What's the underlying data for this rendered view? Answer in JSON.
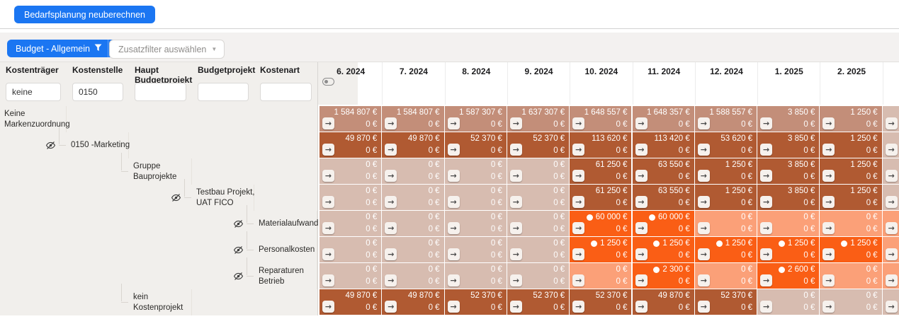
{
  "topbar": {
    "recalculate_label": "Bedarfsplanung neuberechnen"
  },
  "filterbar": {
    "primary_label": "Budget - Allgemein",
    "secondary_label": "Zusatzfilter auswählen"
  },
  "icons": {
    "caret_down": "▼",
    "arrow_right": "→",
    "filter_funnel": "funnel",
    "hidden_row": "eye-slash",
    "planned_value": "white-dot"
  },
  "filter_columns": [
    {
      "label": "Kostenträger",
      "value": "keine"
    },
    {
      "label": "Kostenstelle",
      "value": "0150"
    },
    {
      "label": "Haupt Budgetprojekt",
      "value": ""
    },
    {
      "label": "Budgetprojekt",
      "value": ""
    },
    {
      "label": "Kostenart",
      "value": ""
    }
  ],
  "months": [
    "6. 2024",
    "7. 2024",
    "8. 2024",
    "9. 2024",
    "10. 2024",
    "11. 2024",
    "12. 2024",
    "1. 2025",
    "2. 2025"
  ],
  "colors": {
    "accent_blue": "#1b76f2",
    "row_aggregate": "#c38e79",
    "row_dark": "#b05a32",
    "cell_pale": "#d7bcb0",
    "cell_orange": "#fa5e15",
    "cell_light_salmon": "#fba078",
    "pane_gray": "#f1efec"
  },
  "rows": [
    {
      "label": "Keine Markenzuordnung",
      "level": 0,
      "eye": false,
      "sub_value": "0 €",
      "partial_style": "pale",
      "cells": [
        {
          "v": "1 584 807 €",
          "s": "agg"
        },
        {
          "v": "1 584 807 €",
          "s": "agg"
        },
        {
          "v": "1 587 307 €",
          "s": "agg"
        },
        {
          "v": "1 637 307 €",
          "s": "agg"
        },
        {
          "v": "1 648 557 €",
          "s": "agg"
        },
        {
          "v": "1 648 357 €",
          "s": "agg"
        },
        {
          "v": "1 588 557 €",
          "s": "agg"
        },
        {
          "v": "3 850 €",
          "s": "agg"
        },
        {
          "v": "1 250 €",
          "s": "agg"
        }
      ]
    },
    {
      "label": "0150 -Marketing",
      "level": 1,
      "eye": true,
      "sub_value": "0 €",
      "partial_style": "pale",
      "cells": [
        {
          "v": "49 870 €",
          "s": "dark"
        },
        {
          "v": "49 870 €",
          "s": "dark"
        },
        {
          "v": "52 370 €",
          "s": "dark"
        },
        {
          "v": "52 370 €",
          "s": "dark"
        },
        {
          "v": "113 620 €",
          "s": "dark"
        },
        {
          "v": "113 420 €",
          "s": "dark"
        },
        {
          "v": "53 620 €",
          "s": "dark"
        },
        {
          "v": "3 850 €",
          "s": "dark"
        },
        {
          "v": "1 250 €",
          "s": "dark"
        }
      ]
    },
    {
      "label": "Gruppe Bauprojekte",
      "level": 2,
      "eye": false,
      "sub_value": "0 €",
      "partial_style": "pale",
      "cells": [
        {
          "v": "0 €",
          "s": "pale"
        },
        {
          "v": "0 €",
          "s": "pale"
        },
        {
          "v": "0 €",
          "s": "pale"
        },
        {
          "v": "0 €",
          "s": "pale"
        },
        {
          "v": "61 250 €",
          "s": "dark"
        },
        {
          "v": "63 550 €",
          "s": "dark"
        },
        {
          "v": "1 250 €",
          "s": "dark"
        },
        {
          "v": "3 850 €",
          "s": "dark"
        },
        {
          "v": "1 250 €",
          "s": "dark"
        }
      ]
    },
    {
      "label": "Testbau Projekt, UAT FICO",
      "level": 3,
      "eye": true,
      "sub_value": "0 €",
      "partial_style": "pale",
      "cells": [
        {
          "v": "0 €",
          "s": "pale"
        },
        {
          "v": "0 €",
          "s": "pale"
        },
        {
          "v": "0 €",
          "s": "pale"
        },
        {
          "v": "0 €",
          "s": "pale"
        },
        {
          "v": "61 250 €",
          "s": "dark"
        },
        {
          "v": "63 550 €",
          "s": "dark"
        },
        {
          "v": "1 250 €",
          "s": "dark"
        },
        {
          "v": "3 850 €",
          "s": "dark"
        },
        {
          "v": "1 250 €",
          "s": "dark"
        }
      ]
    },
    {
      "label": "Materialaufwand",
      "level": 4,
      "eye": true,
      "sub_value": "0 €",
      "partial_style": "ls",
      "cells": [
        {
          "v": "0 €",
          "s": "pale"
        },
        {
          "v": "0 €",
          "s": "pale"
        },
        {
          "v": "0 €",
          "s": "pale"
        },
        {
          "v": "0 €",
          "s": "pale"
        },
        {
          "v": "60 000 €",
          "s": "orange",
          "d": true
        },
        {
          "v": "60 000 €",
          "s": "orange",
          "d": true
        },
        {
          "v": "0 €",
          "s": "ls"
        },
        {
          "v": "0 €",
          "s": "ls"
        },
        {
          "v": "0 €",
          "s": "ls"
        }
      ]
    },
    {
      "label": "Personalkosten",
      "level": 4,
      "eye": true,
      "sub_value": "0 €",
      "partial_style": "ls",
      "cells": [
        {
          "v": "0 €",
          "s": "pale"
        },
        {
          "v": "0 €",
          "s": "pale"
        },
        {
          "v": "0 €",
          "s": "pale"
        },
        {
          "v": "0 €",
          "s": "pale"
        },
        {
          "v": "1 250 €",
          "s": "orange",
          "d": true
        },
        {
          "v": "1 250 €",
          "s": "orange",
          "d": true
        },
        {
          "v": "1 250 €",
          "s": "orange",
          "d": true
        },
        {
          "v": "1 250 €",
          "s": "orange",
          "d": true
        },
        {
          "v": "1 250 €",
          "s": "orange",
          "d": true
        }
      ]
    },
    {
      "label": "Reparaturen Betrieb",
      "level": 4,
      "eye": true,
      "sub_value": "0 €",
      "partial_style": "ls",
      "cells": [
        {
          "v": "0 €",
          "s": "pale"
        },
        {
          "v": "0 €",
          "s": "pale"
        },
        {
          "v": "0 €",
          "s": "pale"
        },
        {
          "v": "0 €",
          "s": "pale"
        },
        {
          "v": "0 €",
          "s": "ls"
        },
        {
          "v": "2 300 €",
          "s": "orange",
          "d": true
        },
        {
          "v": "0 €",
          "s": "ls"
        },
        {
          "v": "2 600 €",
          "s": "orange",
          "d": true
        },
        {
          "v": "0 €",
          "s": "ls"
        }
      ]
    },
    {
      "label": "kein Kostenprojekt",
      "level": 2,
      "eye": false,
      "sub_value": "0 €",
      "partial_style": "pale",
      "cells": [
        {
          "v": "49 870 €",
          "s": "dark"
        },
        {
          "v": "49 870 €",
          "s": "dark"
        },
        {
          "v": "52 370 €",
          "s": "dark"
        },
        {
          "v": "52 370 €",
          "s": "dark"
        },
        {
          "v": "52 370 €",
          "s": "dark"
        },
        {
          "v": "49 870 €",
          "s": "dark"
        },
        {
          "v": "52 370 €",
          "s": "dark"
        },
        {
          "v": "0 €",
          "s": "pale"
        },
        {
          "v": "0 €",
          "s": "pale"
        }
      ]
    }
  ]
}
